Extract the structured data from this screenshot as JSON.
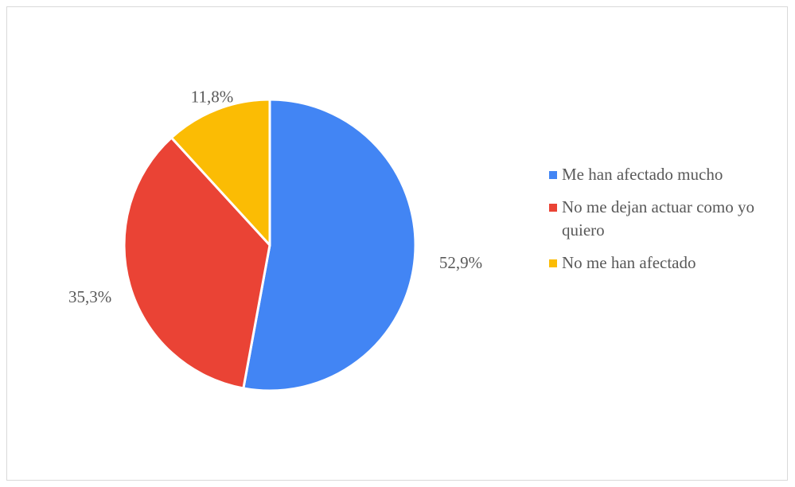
{
  "chart_data": {
    "type": "pie",
    "title": "",
    "categories": [
      "Me han afectado mucho",
      "No me dejan actuar como yo quiero",
      "No me han afectado"
    ],
    "values": [
      52.9,
      35.3,
      11.8
    ],
    "labels": [
      "52,9%",
      "35,3%",
      "11,8%"
    ],
    "colors": [
      "#4285F4",
      "#EA4335",
      "#FBBC04"
    ],
    "legend_position": "right"
  }
}
